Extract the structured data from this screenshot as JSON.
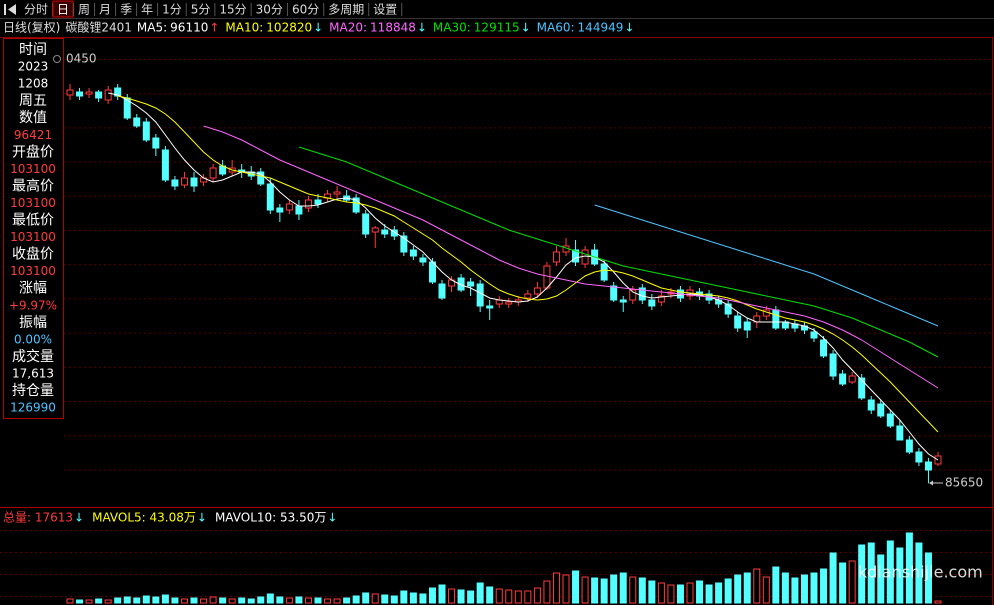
{
  "toolbar": {
    "items": [
      "分时",
      "日",
      "周",
      "月",
      "季",
      "年",
      "1分",
      "5分",
      "15分",
      "30分",
      "60分",
      "多周期",
      "设置"
    ],
    "selected": 1
  },
  "info_panel": [
    {
      "text": "时间",
      "color": "#ffffff",
      "size": 14
    },
    {
      "text": "2023",
      "color": "#ffffff",
      "size": 12
    },
    {
      "text": "1208",
      "color": "#ffffff",
      "size": 12
    },
    {
      "text": "周五",
      "color": "#ffffff",
      "size": 14
    },
    {
      "text": "数值",
      "color": "#ffffff",
      "size": 14
    },
    {
      "text": "96421",
      "color": "#ff3c3c",
      "size": 12
    },
    {
      "text": "开盘价",
      "color": "#ffffff",
      "size": 14
    },
    {
      "text": "103100",
      "color": "#ff3c3c",
      "size": 12
    },
    {
      "text": "最高价",
      "color": "#ffffff",
      "size": 14
    },
    {
      "text": "103100",
      "color": "#ff3c3c",
      "size": 12
    },
    {
      "text": "最低价",
      "color": "#ffffff",
      "size": 14
    },
    {
      "text": "103100",
      "color": "#ff3c3c",
      "size": 12
    },
    {
      "text": "收盘价",
      "color": "#ffffff",
      "size": 14
    },
    {
      "text": "103100",
      "color": "#ff3c3c",
      "size": 12
    },
    {
      "text": "涨幅",
      "color": "#ffffff",
      "size": 14
    },
    {
      "text": "+9.97%",
      "color": "#ff3c3c",
      "size": 12
    },
    {
      "text": "振幅",
      "color": "#ffffff",
      "size": 14
    },
    {
      "text": "0.00%",
      "color": "#4fc3ff",
      "size": 12
    },
    {
      "text": "成交量",
      "color": "#ffffff",
      "size": 14
    },
    {
      "text": "17,613",
      "color": "#ffffff",
      "size": 12
    },
    {
      "text": "持仓量",
      "color": "#ffffff",
      "size": 14
    },
    {
      "text": "126990",
      "color": "#4fc3ff",
      "size": 12
    }
  ],
  "watermark": "kdianshijie.com",
  "chart_data": {
    "type": "candlestick",
    "period": "日线(复权)",
    "title": "碳酸锂2401",
    "max_label": "0450",
    "colors": {
      "up": "#ff3c3c",
      "down": "#54ffff"
    },
    "ylim": [
      84650,
      111950
    ],
    "volume_ylim": [
      0,
      80
    ],
    "open": [
      108950,
      109130,
      109010,
      109130,
      108650,
      109370,
      108770,
      107570,
      107330,
      106370,
      105650,
      103850,
      103550,
      103970,
      103730,
      103970,
      104690,
      104330,
      104450,
      104330,
      104330,
      103610,
      102170,
      102050,
      102290,
      102170,
      102650,
      102770,
      103010,
      102890,
      102770,
      101810,
      100730,
      100850,
      100850,
      100490,
      99650,
      99170,
      98930,
      97610,
      97490,
      97970,
      97730,
      97610,
      96290,
      96410,
      96410,
      96530,
      96770,
      97010,
      97370,
      98930,
      99530,
      99650,
      98810,
      99650,
      98810,
      97490,
      96650,
      96650,
      97370,
      96650,
      96530,
      97010,
      97250,
      96890,
      97130,
      97010,
      96650,
      96410,
      95690,
      95330,
      95330,
      95690,
      96050,
      95330,
      95210,
      95090,
      94730,
      94250,
      93410,
      92210,
      91730,
      91970,
      90650,
      90410,
      89810,
      89090,
      88250,
      87530,
      86930,
      86810
    ],
    "high": [
      109610,
      109370,
      109370,
      109250,
      109490,
      109610,
      109010,
      107810,
      107570,
      106610,
      105890,
      104090,
      104330,
      104330,
      104210,
      104810,
      105050,
      105050,
      104810,
      104690,
      104570,
      103970,
      102410,
      102650,
      102650,
      102890,
      103010,
      103250,
      103490,
      103250,
      103010,
      102050,
      101090,
      101210,
      101090,
      100730,
      99890,
      99410,
      99170,
      97850,
      98090,
      98210,
      97970,
      97850,
      96650,
      96890,
      96770,
      96890,
      97250,
      97730,
      98930,
      99890,
      100370,
      100250,
      99890,
      100010,
      99050,
      97730,
      96890,
      97490,
      97610,
      97010,
      97250,
      97370,
      97490,
      97490,
      97370,
      97250,
      96890,
      96650,
      95930,
      95570,
      95930,
      96290,
      96290,
      95450,
      95450,
      95330,
      94970,
      94490,
      93650,
      92450,
      92330,
      92210,
      90890,
      90650,
      90050,
      89450,
      88490,
      87770,
      87170,
      87530
    ],
    "low": [
      108650,
      108650,
      108770,
      108530,
      108410,
      108650,
      107450,
      106970,
      106130,
      105290,
      103730,
      103250,
      103370,
      103130,
      103490,
      103730,
      104090,
      104090,
      103970,
      103850,
      103490,
      101810,
      101330,
      101810,
      101450,
      101930,
      102170,
      102530,
      102770,
      102530,
      101810,
      100370,
      99770,
      100370,
      100250,
      99290,
      99050,
      98690,
      97610,
      96650,
      97130,
      97130,
      96890,
      95930,
      95450,
      96170,
      96170,
      96290,
      96530,
      96770,
      97250,
      98690,
      99290,
      98690,
      98570,
      98690,
      97730,
      96530,
      95930,
      96410,
      96410,
      96050,
      96290,
      96770,
      96530,
      96650,
      96650,
      96410,
      96170,
      95570,
      94730,
      94370,
      94970,
      95450,
      94850,
      94850,
      94730,
      94610,
      94130,
      93170,
      91850,
      91490,
      91610,
      90650,
      89810,
      89570,
      88970,
      88250,
      87410,
      86690,
      85650,
      86690
    ],
    "close": [
      109250,
      108890,
      109130,
      108770,
      109250,
      108890,
      107570,
      107090,
      106250,
      105770,
      103850,
      103490,
      103970,
      103490,
      103970,
      104570,
      104210,
      104570,
      104330,
      104090,
      103610,
      102050,
      101930,
      102410,
      101810,
      102650,
      102410,
      103010,
      103130,
      102650,
      101930,
      100610,
      100970,
      100610,
      100490,
      99530,
      99290,
      98930,
      97730,
      96770,
      97850,
      97250,
      97490,
      96290,
      96170,
      96650,
      96530,
      96650,
      97010,
      97370,
      98690,
      99530,
      99890,
      98930,
      99650,
      98810,
      97850,
      96650,
      96530,
      97250,
      96650,
      96290,
      96890,
      97130,
      96770,
      97250,
      96890,
      96650,
      96410,
      95810,
      94970,
      94850,
      95690,
      96050,
      94970,
      94970,
      94970,
      94850,
      94370,
      93290,
      92090,
      91610,
      92090,
      90770,
      90050,
      89690,
      89090,
      88250,
      87530,
      86930,
      86450,
      87290
    ],
    "volume": [
      4,
      3,
      3,
      4,
      3,
      5,
      6,
      5,
      7,
      6,
      8,
      5,
      4,
      5,
      4,
      6,
      5,
      4,
      5,
      4,
      6,
      9,
      6,
      5,
      6,
      5,
      5,
      4,
      4,
      5,
      7,
      10,
      9,
      8,
      7,
      12,
      10,
      9,
      15,
      18,
      14,
      13,
      12,
      20,
      16,
      14,
      13,
      12,
      12,
      15,
      22,
      30,
      28,
      32,
      26,
      25,
      24,
      28,
      30,
      26,
      25,
      22,
      20,
      18,
      18,
      20,
      22,
      18,
      20,
      24,
      28,
      30,
      34,
      26,
      36,
      30,
      25,
      28,
      30,
      34,
      50,
      40,
      42,
      58,
      60,
      48,
      62,
      55,
      70,
      60,
      50,
      2
    ],
    "ma": [
      {
        "name": "MA5:",
        "value": 96110,
        "trend": "↑",
        "trend_color": "#ff3c3c",
        "color": "#ffffff",
        "values": [
          null,
          null,
          null,
          null,
          109070,
          108950,
          108650,
          108290,
          107870,
          107330,
          106550,
          105770,
          105050,
          104450,
          103970,
          103730,
          103850,
          104090,
          104330,
          104330,
          104210,
          103730,
          103130,
          102650,
          102290,
          102290,
          102350,
          102530,
          102710,
          102770,
          102650,
          102170,
          101570,
          101090,
          100730,
          100370,
          99950,
          99530,
          98930,
          98330,
          97850,
          97550,
          97370,
          97070,
          96770,
          96650,
          96590,
          96530,
          96590,
          96830,
          97370,
          98030,
          98750,
          99170,
          99290,
          99230,
          98930,
          98330,
          97670,
          97130,
          96890,
          96770,
          96830,
          96890,
          96950,
          97010,
          96950,
          96830,
          96650,
          96350,
          95930,
          95570,
          95330,
          95330,
          95330,
          95330,
          95210,
          95090,
          94850,
          94370,
          93770,
          93050,
          92450,
          91850,
          91250,
          90650,
          90050,
          89450,
          88730,
          88010,
          87410,
          87050
        ]
      },
      {
        "name": "MA10:",
        "value": 102820,
        "trend": "↓",
        "trend_color": "#54ffff",
        "color": "#ffff00",
        "values": [
          null,
          null,
          null,
          null,
          null,
          108890,
          108770,
          108590,
          108410,
          108170,
          107810,
          107330,
          106730,
          106130,
          105530,
          105050,
          104690,
          104450,
          104330,
          104210,
          104090,
          103970,
          103730,
          103490,
          103250,
          103010,
          102890,
          102770,
          102650,
          102530,
          102470,
          102350,
          102170,
          101930,
          101690,
          101330,
          100970,
          100610,
          100250,
          99770,
          99350,
          98930,
          98450,
          98030,
          97610,
          97250,
          97010,
          96830,
          96710,
          96650,
          96710,
          96890,
          97250,
          97670,
          98090,
          98330,
          98450,
          98390,
          98270,
          98090,
          97850,
          97610,
          97370,
          97250,
          97130,
          97070,
          97010,
          96950,
          96890,
          96770,
          96590,
          96350,
          96110,
          95930,
          95750,
          95570,
          95450,
          95330,
          95150,
          94910,
          94610,
          94250,
          93830,
          93350,
          92810,
          92270,
          91730,
          91130,
          90530,
          89930,
          89330,
          88730
        ]
      },
      {
        "name": "MA20:",
        "value": 118848,
        "trend": "↓",
        "trend_color": "#54ffff",
        "color": "#ff66ff",
        "values": [
          null,
          null,
          null,
          null,
          null,
          null,
          null,
          null,
          null,
          null,
          null,
          null,
          null,
          null,
          107090,
          106910,
          106730,
          106490,
          106250,
          105950,
          105650,
          105350,
          105050,
          104810,
          104570,
          104330,
          104090,
          103850,
          103610,
          103370,
          103130,
          102890,
          102650,
          102410,
          102170,
          101930,
          101690,
          101450,
          101150,
          100850,
          100550,
          100250,
          99950,
          99650,
          99350,
          99050,
          98810,
          98570,
          98390,
          98210,
          98090,
          97970,
          97850,
          97730,
          97610,
          97550,
          97490,
          97430,
          97370,
          97310,
          97250,
          97190,
          97130,
          97070,
          97010,
          96950,
          96890,
          96830,
          96770,
          96650,
          96530,
          96410,
          96290,
          96170,
          96050,
          95930,
          95810,
          95690,
          95510,
          95330,
          95090,
          94850,
          94550,
          94250,
          93890,
          93530,
          93170,
          92810,
          92450,
          92090,
          91730,
          91370
        ]
      },
      {
        "name": "MA30:",
        "value": 129115,
        "trend": "↓",
        "trend_color": "#54ffff",
        "color": "#00e000",
        "values": [
          null,
          null,
          null,
          null,
          null,
          null,
          null,
          null,
          null,
          null,
          null,
          null,
          null,
          null,
          null,
          null,
          null,
          null,
          null,
          null,
          null,
          null,
          null,
          null,
          105830,
          105650,
          105470,
          105290,
          105110,
          104930,
          104690,
          104450,
          104210,
          103970,
          103730,
          103490,
          103250,
          103010,
          102770,
          102530,
          102290,
          102050,
          101810,
          101570,
          101330,
          101090,
          100850,
          100670,
          100490,
          100310,
          100130,
          99950,
          99770,
          99590,
          99410,
          99230,
          99050,
          98870,
          98690,
          98570,
          98450,
          98330,
          98210,
          98090,
          97970,
          97850,
          97730,
          97610,
          97490,
          97370,
          97250,
          97130,
          97010,
          96890,
          96770,
          96650,
          96530,
          96410,
          96290,
          96110,
          95930,
          95750,
          95570,
          95330,
          95090,
          94850,
          94610,
          94370,
          94130,
          93830,
          93530,
          93230
        ]
      },
      {
        "name": "MA60:",
        "value": 144949,
        "trend": "↓",
        "trend_color": "#54ffff",
        "color": "#4fc3ff",
        "values": [
          null,
          null,
          null,
          null,
          null,
          null,
          null,
          null,
          null,
          null,
          null,
          null,
          null,
          null,
          null,
          null,
          null,
          null,
          null,
          null,
          null,
          null,
          null,
          null,
          null,
          null,
          null,
          null,
          null,
          null,
          null,
          null,
          null,
          null,
          null,
          null,
          null,
          null,
          null,
          null,
          null,
          null,
          null,
          null,
          null,
          null,
          null,
          null,
          null,
          null,
          null,
          null,
          null,
          null,
          null,
          102350,
          102170,
          101990,
          101810,
          101630,
          101450,
          101270,
          101090,
          100910,
          100730,
          100550,
          100370,
          100190,
          100010,
          99830,
          99650,
          99470,
          99290,
          99110,
          98930,
          98750,
          98570,
          98390,
          98210,
          97970,
          97730,
          97490,
          97250,
          97010,
          96770,
          96530,
          96290,
          96050,
          95810,
          95570,
          95330,
          95090
        ]
      }
    ],
    "volume_legend": [
      {
        "text": "总量: 17613",
        "trend": "↓",
        "color": "#ff3c3c",
        "trend_color": "#54ffff"
      },
      {
        "text": "MAVOL5: 43.08万",
        "trend": "↓",
        "color": "#ffff00",
        "trend_color": "#54ffff"
      },
      {
        "text": "MAVOL10: 53.50万",
        "trend": "↓",
        "color": "#ffffff",
        "trend_color": "#54ffff"
      }
    ]
  }
}
